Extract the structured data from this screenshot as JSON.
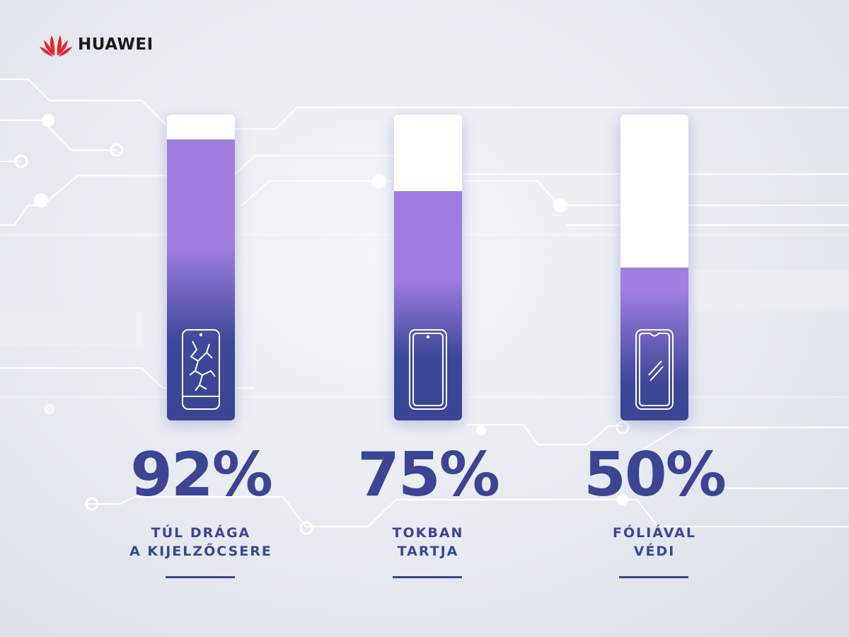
{
  "brand": {
    "name": "HUAWEI"
  },
  "chart_data": {
    "type": "bar",
    "categories": [
      "TÚL DRÁGA A KIJELZŐCSERE",
      "TOKBAN TARTJA",
      "FÓLIÁVAL VÉDI"
    ],
    "values": [
      92,
      75,
      50
    ],
    "value_labels": [
      "92%",
      "75%",
      "50%"
    ],
    "label_lines": [
      [
        "TÚL DRÁGA",
        "A KIJELZŐCSERE"
      ],
      [
        "TOKBAN",
        "TARTJA"
      ],
      [
        "FÓLIÁVAL",
        "VÉDI"
      ]
    ],
    "icons": [
      "cracked-phone-icon",
      "phone-icon",
      "screen-protector-phone-icon"
    ],
    "unit": "%",
    "ylim": [
      0,
      100
    ],
    "grid": false,
    "legend": "none"
  },
  "colors": {
    "accent_dark": "#3b4593",
    "accent_light": "#a07ee0",
    "brand_red": "#e3262c"
  }
}
